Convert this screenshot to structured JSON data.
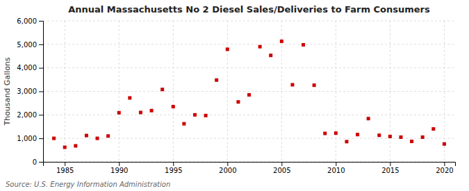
{
  "chart_data": {
    "type": "scatter",
    "title": "Annual Massachusetts No 2 Diesel Sales/Deliveries to Farm Consumers",
    "ylabel": "Thousand Gallons",
    "source": "Source: U.S. Energy Information Administration",
    "color": "#cc0000",
    "marker": "square",
    "grid": true,
    "xlim": [
      1983,
      2021
    ],
    "ylim": [
      0,
      6000
    ],
    "xticks": [
      1985,
      1990,
      1995,
      2000,
      2005,
      2010,
      2015,
      2020
    ],
    "yticks": [
      0,
      {
        "value": 1000,
        "label": "1,000"
      },
      {
        "value": 2000,
        "label": "2,000"
      },
      {
        "value": 3000,
        "label": "3,000"
      },
      {
        "value": 4000,
        "label": "4,000"
      },
      {
        "value": 5000,
        "label": "5,000"
      },
      {
        "value": 6000,
        "label": "6,000"
      }
    ],
    "x": [
      1984,
      1985,
      1986,
      1987,
      1988,
      1989,
      1990,
      1991,
      1992,
      1993,
      1994,
      1995,
      1996,
      1997,
      1998,
      1999,
      2000,
      2001,
      2002,
      2003,
      2004,
      2005,
      2006,
      2007,
      2008,
      2009,
      2010,
      2011,
      2012,
      2013,
      2014,
      2015,
      2016,
      2017,
      2018,
      2019,
      2020
    ],
    "values": [
      1000,
      620,
      680,
      1120,
      1000,
      1100,
      2090,
      2720,
      2100,
      2180,
      3080,
      2350,
      1620,
      2000,
      1970,
      3480,
      4790,
      2550,
      2850,
      4900,
      4530,
      5130,
      3280,
      4980,
      3260,
      1210,
      1220,
      860,
      1160,
      1840,
      1130,
      1080,
      1050,
      870,
      1050,
      1400,
      760
    ]
  }
}
